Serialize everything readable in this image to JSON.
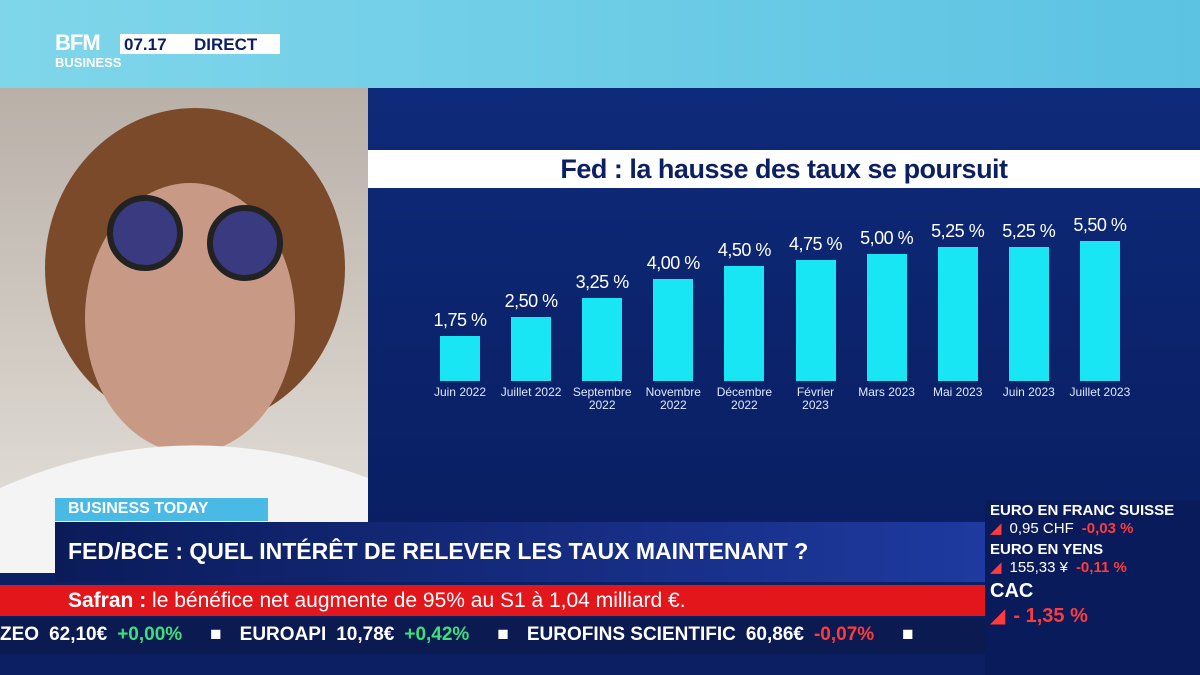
{
  "channel": {
    "logo_top": "BFM",
    "logo_bottom": "BUSINESS",
    "time": "07.17",
    "live": "DIRECT"
  },
  "chart_data": {
    "type": "bar",
    "title": "Fed : la hausse des taux se poursuit",
    "categories": [
      "Juin 2022",
      "Juillet 2022",
      "Septembre\n2022",
      "Novembre\n2022",
      "Décembre\n2022",
      "Février\n2023",
      "Mars 2023",
      "Mai 2023",
      "Juin 2023",
      "Juillet 2023"
    ],
    "values": [
      1.75,
      2.5,
      3.25,
      4.0,
      4.5,
      4.75,
      5.0,
      5.25,
      5.25,
      5.5
    ],
    "value_labels": [
      "1,75 %",
      "2,50 %",
      "3,25 %",
      "4,00 %",
      "4,50 %",
      "4,75 %",
      "5,00 %",
      "5,25 %",
      "5,25 %",
      "5,50 %"
    ],
    "color": "#19e6f5"
  },
  "show": {
    "name": "BUSINESS TODAY",
    "headline": "FED/BCE : QUEL INTÉRÊT DE RELEVER LES TAUX MAINTENANT ?"
  },
  "news": {
    "company": "Safran :",
    "text": "le bénéfice net augmente de 95% au S1 à 1,04 milliard €."
  },
  "ticker": [
    [
      "ZEO",
      "62,10€",
      "+0,00%"
    ],
    [
      "EUROAPI",
      "10,78€",
      "+0,42%"
    ],
    [
      "EUROFINS SCIENTIFIC",
      "60,86€",
      "-0,07%"
    ]
  ],
  "markets": [
    {
      "name": "EURO EN FRANC SUISSE",
      "value": "0,95 CHF",
      "change": "-0,03 %"
    },
    {
      "name": "EURO EN YENS",
      "value": "155,33 ¥",
      "change": "-0,11 %"
    },
    {
      "name": "CAC",
      "value": "",
      "change": "- 1,35 %"
    }
  ]
}
